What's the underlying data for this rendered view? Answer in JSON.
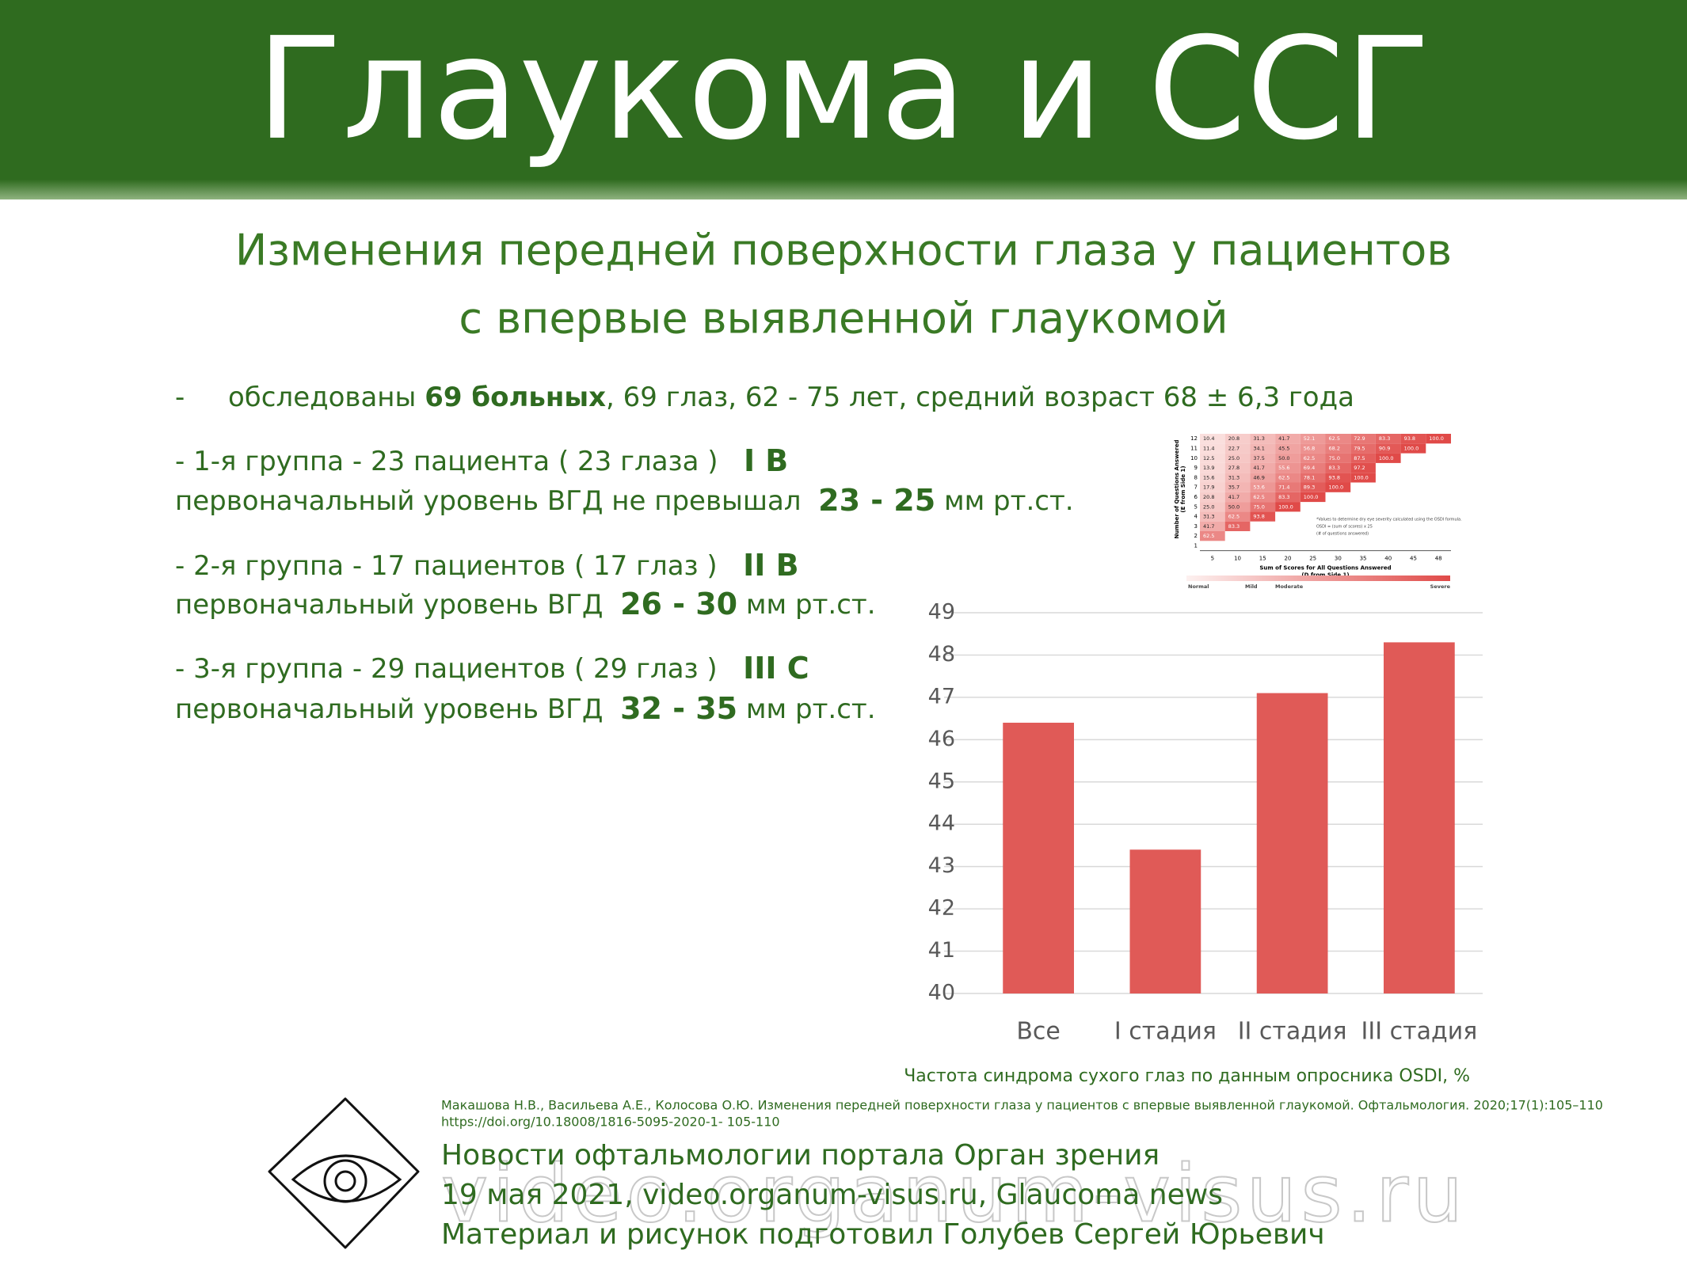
{
  "header": {
    "title": "Глаукома и ССГ"
  },
  "subtitle": [
    "Изменения передней поверхности глаза у пациентов",
    "с впервые выявленной глаукомой"
  ],
  "lines": [
    [
      {
        "t": "-"
      },
      {
        "t": "обследованы "
      },
      {
        "t": "69 больных",
        "b": true
      },
      {
        "t": ", 69 глаз, 62 - 75 лет, средний возраст 68 ± 6,3 года"
      }
    ],
    [
      {
        "t": "- 1-я группа - 23 пациента ( 23 глаза )   "
      },
      {
        "t": "I В",
        "b": true
      }
    ],
    [
      {
        "t": "первоначальный уровень ВГД не превышал  "
      },
      {
        "t": "23 - 25",
        "b": true
      },
      {
        "t": " мм рт.ст."
      }
    ],
    [
      {
        "t": "- 2-я группа - 17 пациентов ( 17 глаз )   "
      },
      {
        "t": "II В",
        "b": true
      }
    ],
    [
      {
        "t": "первоначальный уровень ВГД  "
      },
      {
        "t": "26 - 30",
        "b": true
      },
      {
        "t": " мм рт.ст."
      }
    ],
    [
      {
        "t": "- 3-я группа - 29 пациентов ( 29 глаз )   "
      },
      {
        "t": "III С",
        "b": true
      }
    ],
    [
      {
        "t": "первоначальный уровень ВГД  "
      },
      {
        "t": "32 - 35",
        "b": true
      },
      {
        "t": " мм рт.ст."
      }
    ]
  ],
  "osdi_table": {
    "y_label": [
      "Number of Questions Answered",
      "(E from Side 1)"
    ],
    "x_label": [
      "Sum of Scores for All Questions Answered",
      "(D from Side 1)"
    ],
    "columns": [
      5,
      10,
      15,
      20,
      25,
      30,
      35,
      40,
      45,
      48
    ],
    "rows": [
      {
        "n": 12,
        "values": [
          "10.4",
          "20.8",
          "31.3",
          "41.7",
          "52.1",
          "62.5",
          "72.9",
          "83.3",
          "93.8",
          "100.0"
        ]
      },
      {
        "n": 11,
        "values": [
          "11.4",
          "22.7",
          "34.1",
          "45.5",
          "56.8",
          "68.2",
          "79.5",
          "90.9",
          "100.0"
        ]
      },
      {
        "n": 10,
        "values": [
          "12.5",
          "25.0",
          "37.5",
          "50.0",
          "62.5",
          "75.0",
          "87.5",
          "100.0"
        ]
      },
      {
        "n": 9,
        "values": [
          "13.9",
          "27.8",
          "41.7",
          "55.6",
          "69.4",
          "83.3",
          "97.2"
        ]
      },
      {
        "n": 8,
        "values": [
          "15.6",
          "31.3",
          "46.9",
          "62.5",
          "78.1",
          "93.8",
          "100.0"
        ]
      },
      {
        "n": 7,
        "values": [
          "17.9",
          "35.7",
          "53.6",
          "71.4",
          "89.3",
          "100.0"
        ]
      },
      {
        "n": 6,
        "values": [
          "20.8",
          "41.7",
          "62.5",
          "83.3",
          "100.0"
        ]
      },
      {
        "n": 5,
        "values": [
          "25.0",
          "50.0",
          "75.0",
          "100.0"
        ]
      },
      {
        "n": 4,
        "values": [
          "31.3",
          "62.5",
          "93.8"
        ]
      },
      {
        "n": 3,
        "values": [
          "41.7",
          "83.3"
        ]
      },
      {
        "n": 2,
        "values": [
          "62.5"
        ]
      },
      {
        "n": 1,
        "values": []
      }
    ],
    "note": [
      "*Values to determine dry eye severity calculated using the OSDI formula.",
      "OSDI = (sum of scores) x 25",
      "(# of questions answered)"
    ],
    "legend": [
      "Normal",
      "Mild",
      "Moderate",
      "Severe"
    ]
  },
  "chart_data": {
    "type": "bar",
    "categories": [
      "Все",
      "I стадия",
      "II стадия",
      "III стадия"
    ],
    "values": [
      46.4,
      43.4,
      47.1,
      48.3
    ],
    "color": "#e05a57",
    "ylim": [
      40,
      49
    ],
    "yticks": [
      40,
      41,
      42,
      43,
      44,
      45,
      46,
      47,
      48,
      49
    ],
    "grid": true,
    "caption": "Частота синдрома сухого глаз по данным опросника OSDI, %"
  },
  "citation": [
    "Макашова Н.В., Васильева А.Е., Колосова О.Ю. Изменения передней поверхности глаза у пациентов с впервые выявленной глаукомой. Офтальмология. 2020;17(1):105–110",
    "https://doi.org/10.18008/1816-5095-2020-1- 105-110"
  ],
  "footer": [
    "Новости офтальмологии портала Орган зрения",
    "19 мая 2021, video.organum-visus.ru, Glaucoma news",
    "Материал и рисунок подготовил Голубев Сергей Юрьевич"
  ],
  "watermark": "video.organum-visus.ru"
}
